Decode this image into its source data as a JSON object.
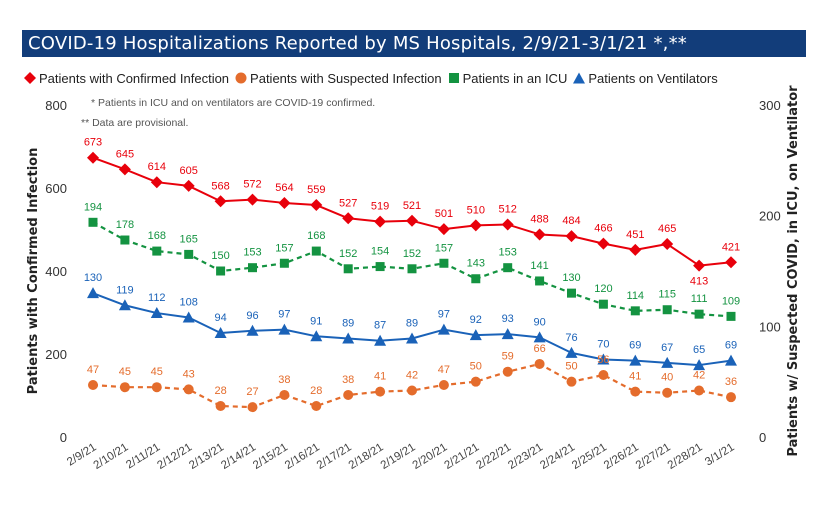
{
  "title": "COVID-19 Hospitalizations Reported by MS Hospitals, 2/9/21-3/1/21 *,**",
  "legend": [
    {
      "label": "Patients with Confirmed Infection",
      "marker": "diamond",
      "color": "#e8000b"
    },
    {
      "label": "Patients with Suspected Infection",
      "marker": "circle",
      "color": "#e46c2c"
    },
    {
      "label": "Patients in an ICU",
      "marker": "square",
      "color": "#149341"
    },
    {
      "label": "Patients on Ventilators",
      "marker": "triangle",
      "color": "#1a62b8"
    }
  ],
  "notes": [
    "* Patients in ICU and on ventilators are COVID-19 confirmed.",
    "** Data are provisional."
  ],
  "chart_data": {
    "type": "line",
    "x": [
      "2/9/21",
      "2/10/21",
      "2/11/21",
      "2/12/21",
      "2/13/21",
      "2/14/21",
      "2/15/21",
      "2/16/21",
      "2/17/21",
      "2/18/21",
      "2/19/21",
      "2/20/21",
      "2/21/21",
      "2/22/21",
      "2/23/21",
      "2/24/21",
      "2/25/21",
      "2/26/21",
      "2/27/21",
      "2/28/21",
      "3/1/21"
    ],
    "ylabel": "Patients with Confirmed Infection",
    "ylim": [
      0,
      800
    ],
    "yticks": [
      0,
      200,
      400,
      600,
      800
    ],
    "y2label": "Patients w/ Suspected COVID, in ICU, on Ventilator",
    "y2lim": [
      0,
      300
    ],
    "y2ticks": [
      0,
      100,
      200,
      300
    ],
    "grid": false,
    "legend_position": "top",
    "series": [
      {
        "name": "Patients with Confirmed Infection",
        "axis": "left",
        "color": "#e8000b",
        "marker": "diamond",
        "dashed": false,
        "values": [
          673,
          645,
          614,
          605,
          568,
          572,
          564,
          559,
          527,
          519,
          521,
          501,
          510,
          512,
          488,
          484,
          466,
          451,
          465,
          413,
          421
        ]
      },
      {
        "name": "Patients with Suspected Infection",
        "axis": "right",
        "color": "#e46c2c",
        "marker": "circle",
        "dashed": true,
        "values": [
          47,
          45,
          45,
          43,
          28,
          27,
          38,
          28,
          38,
          41,
          42,
          47,
          50,
          59,
          66,
          50,
          56,
          41,
          40,
          42,
          36
        ]
      },
      {
        "name": "Patients in an ICU",
        "axis": "right",
        "color": "#149341",
        "marker": "square",
        "dashed": true,
        "values": [
          194,
          178,
          168,
          165,
          150,
          153,
          157,
          168,
          152,
          154,
          152,
          157,
          143,
          153,
          141,
          130,
          120,
          114,
          115,
          111,
          109
        ]
      },
      {
        "name": "Patients on Ventilators",
        "axis": "right",
        "color": "#1a62b8",
        "marker": "triangle",
        "dashed": false,
        "values": [
          130,
          119,
          112,
          108,
          94,
          96,
          97,
          91,
          89,
          87,
          89,
          97,
          92,
          93,
          90,
          76,
          70,
          69,
          67,
          65,
          69
        ]
      }
    ]
  }
}
